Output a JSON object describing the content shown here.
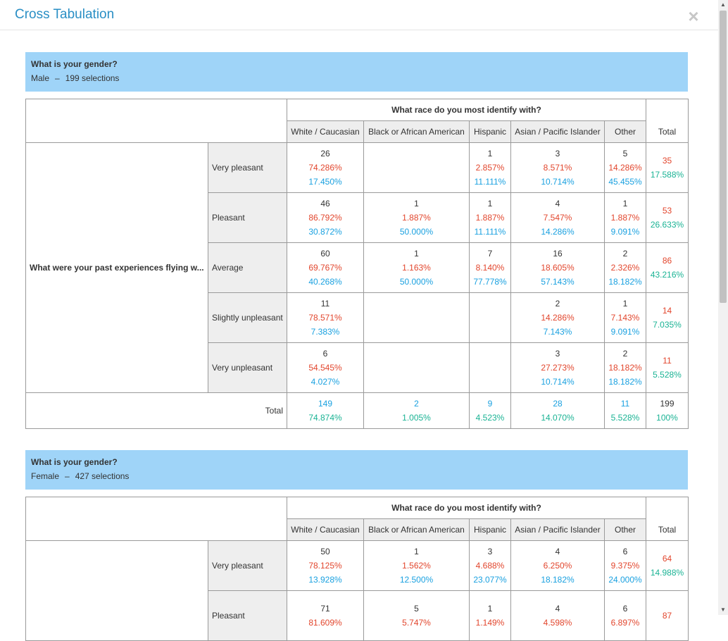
{
  "modal": {
    "title": "Cross Tabulation",
    "close_glyph": "×"
  },
  "groups": [
    {
      "question": "What is your gender?",
      "selection": "Male",
      "count": "199 selections",
      "col_question": "What race do you most identify with?",
      "columns": [
        "White / Caucasian",
        "Black or African American",
        "Hispanic",
        "Asian / Pacific Islander",
        "Other"
      ],
      "total_label": "Total",
      "row_question": "What were your past experiences flying w...",
      "rows": [
        {
          "label": "Very pleasant",
          "cells": [
            [
              "26",
              "74.286%",
              "17.450%"
            ],
            [
              "",
              "",
              ""
            ],
            [
              "1",
              "2.857%",
              "11.111%"
            ],
            [
              "3",
              "8.571%",
              "10.714%"
            ],
            [
              "5",
              "14.286%",
              "45.455%"
            ]
          ],
          "total": [
            "35",
            "17.588%"
          ]
        },
        {
          "label": "Pleasant",
          "cells": [
            [
              "46",
              "86.792%",
              "30.872%"
            ],
            [
              "1",
              "1.887%",
              "50.000%"
            ],
            [
              "1",
              "1.887%",
              "11.111%"
            ],
            [
              "4",
              "7.547%",
              "14.286%"
            ],
            [
              "1",
              "1.887%",
              "9.091%"
            ]
          ],
          "total": [
            "53",
            "26.633%"
          ]
        },
        {
          "label": "Average",
          "cells": [
            [
              "60",
              "69.767%",
              "40.268%"
            ],
            [
              "1",
              "1.163%",
              "50.000%"
            ],
            [
              "7",
              "8.140%",
              "77.778%"
            ],
            [
              "16",
              "18.605%",
              "57.143%"
            ],
            [
              "2",
              "2.326%",
              "18.182%"
            ]
          ],
          "total": [
            "86",
            "43.216%"
          ]
        },
        {
          "label": "Slightly unpleasant",
          "cells": [
            [
              "11",
              "78.571%",
              "7.383%"
            ],
            [
              "",
              "",
              ""
            ],
            [
              "",
              "",
              ""
            ],
            [
              "2",
              "14.286%",
              "7.143%"
            ],
            [
              "1",
              "7.143%",
              "9.091%"
            ]
          ],
          "total": [
            "14",
            "7.035%"
          ]
        },
        {
          "label": "Very unpleasant",
          "cells": [
            [
              "6",
              "54.545%",
              "4.027%"
            ],
            [
              "",
              "",
              ""
            ],
            [
              "",
              "",
              ""
            ],
            [
              "3",
              "27.273%",
              "10.714%"
            ],
            [
              "2",
              "18.182%",
              "18.182%"
            ]
          ],
          "total": [
            "11",
            "5.528%"
          ]
        }
      ],
      "totals_row": {
        "label": "Total",
        "cells": [
          [
            "149",
            "74.874%"
          ],
          [
            "2",
            "1.005%"
          ],
          [
            "9",
            "4.523%"
          ],
          [
            "28",
            "14.070%"
          ],
          [
            "11",
            "5.528%"
          ]
        ],
        "grand": [
          "199",
          "100%"
        ]
      }
    },
    {
      "question": "What is your gender?",
      "selection": "Female",
      "count": "427 selections",
      "col_question": "What race do you most identify with?",
      "columns": [
        "White / Caucasian",
        "Black or African American",
        "Hispanic",
        "Asian / Pacific Islander",
        "Other"
      ],
      "total_label": "Total",
      "rows": [
        {
          "label": "Very pleasant",
          "cells": [
            [
              "50",
              "78.125%",
              "13.928%"
            ],
            [
              "1",
              "1.562%",
              "12.500%"
            ],
            [
              "3",
              "4.688%",
              "23.077%"
            ],
            [
              "4",
              "6.250%",
              "18.182%"
            ],
            [
              "6",
              "9.375%",
              "24.000%"
            ]
          ],
          "total": [
            "64",
            "14.988%"
          ]
        },
        {
          "label": "Pleasant",
          "cells": [
            [
              "71",
              "81.609%",
              ""
            ],
            [
              "5",
              "5.747%",
              ""
            ],
            [
              "1",
              "1.149%",
              ""
            ],
            [
              "4",
              "4.598%",
              ""
            ],
            [
              "6",
              "6.897%",
              ""
            ]
          ],
          "total": [
            "87",
            ""
          ]
        }
      ]
    }
  ],
  "colors": {
    "header_blue": "#9fd4f8",
    "title_blue": "#2a8fc5",
    "red": "#e2462d",
    "blue": "#1aa1e0",
    "green": "#1ab394"
  }
}
